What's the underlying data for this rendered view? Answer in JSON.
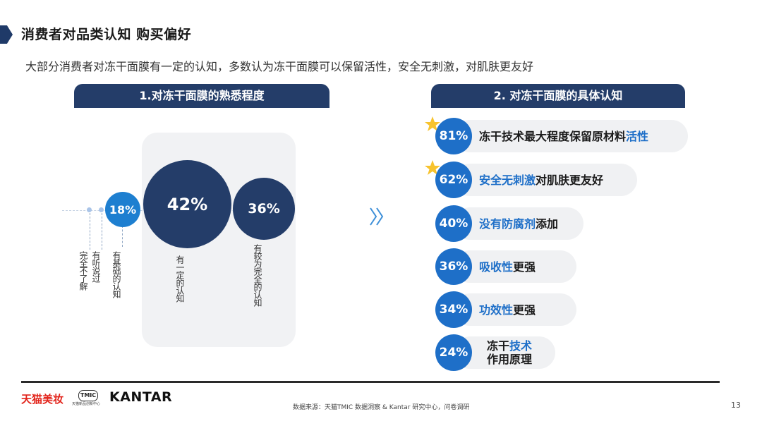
{
  "header": {
    "title": "消费者对品类认知 购买偏好",
    "subtitle": "大部分消费者对冻干面膜有一定的认知，多数认为冻干面膜可以保留活性，安全无刺激，对肌肤更友好"
  },
  "left_section": {
    "heading": "1.对冻干面膜的熟悉程度",
    "levels": [
      {
        "label": "完全不了解",
        "value": ""
      },
      {
        "label": "有听说过",
        "value": ""
      },
      {
        "label": "有基础的认知",
        "value": "18%"
      },
      {
        "label": "有一定的认知",
        "value": "42%"
      },
      {
        "label": "有较为完全的认知",
        "value": "36%"
      }
    ]
  },
  "right_section": {
    "heading": "2. 对冻干面膜的具体认知",
    "items": [
      {
        "value": "81%",
        "text_before": "冻干技术最大程度保留原材料",
        "highlight": "活性",
        "text_after": "",
        "starred": true
      },
      {
        "value": "62%",
        "text_before": "",
        "highlight": "安全无刺激",
        "text_after": "对肌肤更友好",
        "starred": true
      },
      {
        "value": "40%",
        "text_before": "",
        "highlight": "没有防腐剂",
        "text_after": "添加",
        "starred": false
      },
      {
        "value": "36%",
        "text_before": "",
        "highlight": "吸收性",
        "text_after": "更强",
        "starred": false
      },
      {
        "value": "34%",
        "text_before": "",
        "highlight": "功效性",
        "text_after": "更强",
        "starred": false
      },
      {
        "value": "24%",
        "line1_before": "冻干",
        "line1_highlight": "技术",
        "line2": "作用原理",
        "starred": false
      }
    ]
  },
  "colors": {
    "navy": "#243d69",
    "blue": "#1e6fc8",
    "star": "#f7c32e",
    "tmall_red": "#e2231a"
  },
  "footer": {
    "tmall_logo": "天猫美妆",
    "tmic_mark": "TMIC",
    "tmic_caption": "天猫新品创新中心",
    "kantar_logo": "KANTAR",
    "source": "数据来源：天猫TMIC 数据洞察 & Kantar 研究中心，问卷调研",
    "page_number": "13"
  }
}
